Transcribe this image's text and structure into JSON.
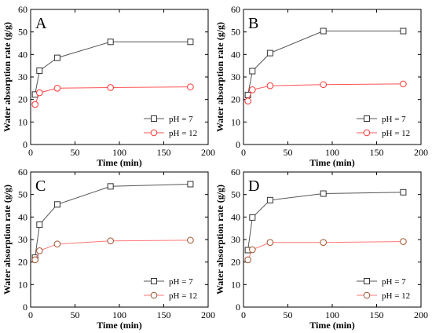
{
  "chart_data": [
    {
      "type": "line",
      "panel_label": "A",
      "xlabel": "Time (min)",
      "ylabel": "Water absorption rate (g/g)",
      "xlim": [
        0,
        200
      ],
      "ylim": [
        0,
        60
      ],
      "xticks": [
        "0",
        "50",
        "100",
        "150",
        "200"
      ],
      "yticks": [
        "0",
        "10",
        "20",
        "30",
        "40",
        "50",
        "60"
      ],
      "legend_position": "lower-right",
      "series": [
        {
          "name": "pH = 7",
          "marker": "square",
          "line_color": "#555555",
          "marker_edge": "#333333",
          "x": [
            5,
            10,
            30,
            90,
            180
          ],
          "y": [
            22.2,
            32.8,
            38.5,
            45.6,
            45.6
          ]
        },
        {
          "name": "pH = 12",
          "marker": "circle",
          "line_color": "#ff5555",
          "marker_edge": "#ff3333",
          "x": [
            5,
            10,
            30,
            90,
            180
          ],
          "y": [
            17.8,
            23.0,
            25.0,
            25.3,
            25.6
          ]
        }
      ]
    },
    {
      "type": "line",
      "panel_label": "B",
      "xlabel": "Time (min)",
      "ylabel": "Water absorption rate (g/g)",
      "xlim": [
        0,
        200
      ],
      "ylim": [
        0,
        60
      ],
      "xticks": [
        "0",
        "50",
        "100",
        "150",
        "200"
      ],
      "yticks": [
        "0",
        "10",
        "20",
        "30",
        "40",
        "50",
        "60"
      ],
      "legend_position": "lower-right",
      "series": [
        {
          "name": "pH = 7",
          "marker": "square",
          "line_color": "#555555",
          "marker_edge": "#333333",
          "x": [
            5,
            10,
            30,
            90,
            180
          ],
          "y": [
            22.0,
            32.6,
            40.6,
            50.4,
            50.4
          ]
        },
        {
          "name": "pH = 12",
          "marker": "circle",
          "line_color": "#ff5555",
          "marker_edge": "#ff3333",
          "x": [
            5,
            10,
            30,
            90,
            180
          ],
          "y": [
            19.3,
            24.3,
            26.1,
            26.6,
            26.9
          ]
        }
      ]
    },
    {
      "type": "line",
      "panel_label": "C",
      "xlabel": "Time (min)",
      "ylabel": "Water absorption rate (g/g)",
      "xlim": [
        0,
        200
      ],
      "ylim": [
        0,
        60
      ],
      "xticks": [
        "0",
        "50",
        "100",
        "150",
        "200"
      ],
      "yticks": [
        "0",
        "10",
        "20",
        "30",
        "40",
        "50",
        "60"
      ],
      "legend_position": "lower-right",
      "series": [
        {
          "name": "pH = 7",
          "marker": "square",
          "line_color": "#555555",
          "marker_edge": "#333333",
          "x": [
            5,
            10,
            30,
            90,
            180
          ],
          "y": [
            22.0,
            36.6,
            45.6,
            53.6,
            54.6
          ]
        },
        {
          "name": "pH = 12",
          "marker": "circle",
          "line_color": "#ff7777",
          "marker_edge": "#a0522d",
          "x": [
            5,
            10,
            30,
            90,
            180
          ],
          "y": [
            21.0,
            25.0,
            28.0,
            29.4,
            29.7
          ]
        }
      ]
    },
    {
      "type": "line",
      "panel_label": "D",
      "xlabel": "Time (min)",
      "ylabel": "Water absorption rate (g/g)",
      "xlim": [
        0,
        200
      ],
      "ylim": [
        0,
        60
      ],
      "xticks": [
        "0",
        "50",
        "100",
        "150",
        "200"
      ],
      "yticks": [
        "0",
        "10",
        "20",
        "30",
        "40",
        "50",
        "60"
      ],
      "legend_position": "lower-right",
      "series": [
        {
          "name": "pH = 7",
          "marker": "square",
          "line_color": "#555555",
          "marker_edge": "#333333",
          "x": [
            5,
            10,
            30,
            90,
            180
          ],
          "y": [
            25.3,
            39.8,
            47.5,
            50.4,
            51.0
          ]
        },
        {
          "name": "pH = 12",
          "marker": "circle",
          "line_color": "#ff7777",
          "marker_edge": "#a0522d",
          "x": [
            5,
            10,
            30,
            90,
            180
          ],
          "y": [
            21.0,
            25.5,
            28.7,
            28.7,
            29.1
          ]
        }
      ]
    }
  ]
}
